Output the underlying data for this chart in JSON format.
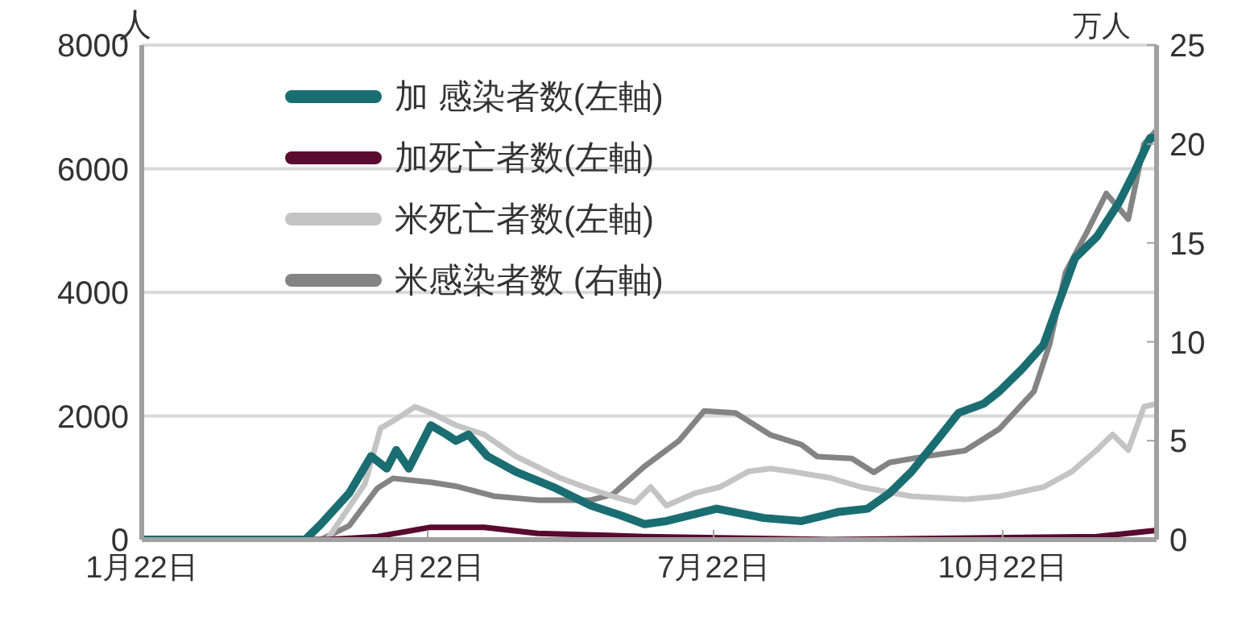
{
  "chart_data": {
    "type": "line",
    "ylabel": "人",
    "y2label": "万人",
    "xlim": [
      "--01-22",
      "--12-10"
    ],
    "xticks": [
      {
        "value": "--01-22",
        "label": "1月22日"
      },
      {
        "value": "--04-22",
        "label": "4月22日"
      },
      {
        "value": "--07-22",
        "label": "7月22日"
      },
      {
        "value": "--10-22",
        "label": "10月22日"
      }
    ],
    "ylim": [
      0,
      8000
    ],
    "yticks": [
      0,
      2000,
      4000,
      6000,
      8000
    ],
    "y2lim": [
      0,
      25
    ],
    "y2ticks": [
      0,
      5,
      10,
      15,
      20,
      25
    ],
    "grid": "y",
    "legend": "top left",
    "series": [
      {
        "name": "加 感染者数(左軸)",
        "color": "#1a6e72",
        "x": [
          "--01-22",
          "--03-14",
          "--03-19",
          "--03-28",
          "--04-04",
          "--04-09",
          "--04-12",
          "--04-16",
          "--04-23",
          "--04-28",
          "--05-01",
          "--05-05",
          "--05-11",
          "--05-20",
          "--06-01",
          "--06-13",
          "--06-22",
          "--06-30",
          "--07-07",
          "--07-23",
          "--08-07",
          "--08-19",
          "--08-31",
          "--09-09",
          "--09-16",
          "--09-23",
          "--10-01",
          "--10-08",
          "--10-16",
          "--10-21",
          "--10-28",
          "--11-04",
          "--11-09",
          "--11-14",
          "--11-21",
          "--11-28",
          "--12-03",
          "--12-08",
          "--12-10"
        ],
        "values": [
          0,
          0,
          250,
          750,
          1350,
          1150,
          1450,
          1150,
          1850,
          1700,
          1600,
          1700,
          1350,
          1100,
          850,
          550,
          400,
          250,
          300,
          500,
          350,
          300,
          450,
          500,
          750,
          1100,
          1600,
          2050,
          2200,
          2400,
          2750,
          3150,
          3850,
          4550,
          4900,
          5450,
          5950,
          6500,
          6500
        ]
      },
      {
        "name": "加死亡者数(左軸)",
        "color": "#5a0a30",
        "x": [
          "--01-22",
          "--03-21",
          "--04-06",
          "--04-23",
          "--05-10",
          "--05-27",
          "--06-30",
          "--08-28",
          "--11-21",
          "--12-10"
        ],
        "values": [
          0,
          0,
          50,
          200,
          200,
          100,
          50,
          0,
          50,
          150
        ]
      },
      {
        "name": "米死亡者数(左軸)",
        "color": "#c4c4c4",
        "x": [
          "--01-22",
          "--03-21",
          "--04-02",
          "--04-07",
          "--04-12",
          "--04-18",
          "--04-23",
          "--05-01",
          "--05-10",
          "--05-20",
          "--06-03",
          "--06-11",
          "--06-20",
          "--06-27",
          "--07-02",
          "--07-07",
          "--07-16",
          "--07-24",
          "--08-02",
          "--08-09",
          "--08-16",
          "--08-28",
          "--09-07",
          "--09-23",
          "--10-10",
          "--10-21",
          "--11-04",
          "--11-13",
          "--11-21",
          "--11-26",
          "--12-01",
          "--12-06",
          "--12-10"
        ],
        "values": [
          0,
          0,
          900,
          1800,
          1950,
          2150,
          2050,
          1850,
          1700,
          1350,
          1000,
          850,
          700,
          600,
          850,
          550,
          750,
          850,
          1100,
          1150,
          1100,
          1000,
          850,
          700,
          650,
          700,
          850,
          1100,
          1450,
          1700,
          1450,
          2150,
          2200
        ]
      },
      {
        "name": "米感染者数 (右軸)",
        "color": "#848484",
        "axis": "y2",
        "x": [
          "--01-22",
          "--03-19",
          "--03-28",
          "--04-06",
          "--04-11",
          "--04-23",
          "--05-01",
          "--05-13",
          "--05-27",
          "--06-13",
          "--06-20",
          "--06-30",
          "--07-11",
          "--07-19",
          "--07-29",
          "--08-09",
          "--08-19",
          "--08-24",
          "--09-04",
          "--09-11",
          "--09-16",
          "--09-27",
          "--10-10",
          "--10-21",
          "--11-01",
          "--11-06",
          "--11-11",
          "--11-18",
          "--11-24",
          "--12-01",
          "--12-06",
          "--12-10"
        ],
        "values": [
          0,
          0,
          0.7,
          2.6,
          3.1,
          2.9,
          2.7,
          2.2,
          2.0,
          2.0,
          2.3,
          3.7,
          5.0,
          6.5,
          6.4,
          5.3,
          4.8,
          4.2,
          4.1,
          3.4,
          3.9,
          4.2,
          4.5,
          5.6,
          7.5,
          9.9,
          13.5,
          15.6,
          17.5,
          16.2,
          20.0,
          20.7
        ]
      }
    ]
  }
}
